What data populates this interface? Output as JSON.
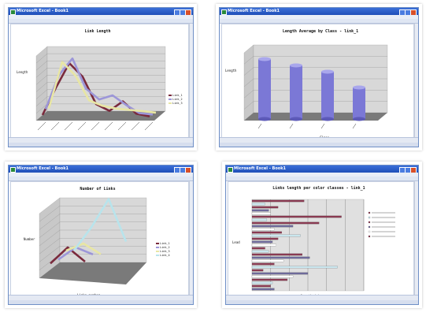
{
  "window": {
    "app_title": "Microsoft Excel - Book1",
    "control_icons": [
      "minimize-icon",
      "maximize-icon",
      "close-icon"
    ]
  },
  "colors": {
    "series_1": "#7a2a3c",
    "series_2": "#9c96d8",
    "series_3": "#e8e6a4",
    "series_4": "#b8e4ec",
    "cylinder": "#7b78d6",
    "wall": "#d8d8d8",
    "floor": "#7a7a7a",
    "titlebar": "#2a5ed0"
  },
  "panels": [
    {
      "title": "Microsoft Excel - Book1"
    },
    {
      "title": "Microsoft Excel - Book1"
    },
    {
      "title": "Microsoft Excel - Book1"
    },
    {
      "title": "Microsoft Excel - Book1"
    }
  ],
  "charts": {
    "link_length": {
      "title": "Link Length",
      "xlabel": "Class",
      "ylabel": "Length",
      "legend": [
        "Link_1",
        "Link_2",
        "Link_3"
      ]
    },
    "length_average": {
      "title": "Length Average by Class - link_1",
      "xlabel": "Class",
      "ylabel": "Length"
    },
    "number_of_links": {
      "title": "Number of Links",
      "xlabel": "Links number",
      "ylabel": "Number",
      "legend": [
        "Link_1",
        "Link_2",
        "Link_3",
        "Link_4"
      ]
    },
    "links_length_per_class": {
      "title": "Links length per color classes - link_1",
      "xlabel": "length (m)",
      "ylabel": "Lead"
    }
  },
  "chart_data": [
    {
      "type": "line",
      "title": "Link Length",
      "xlabel": "Class",
      "ylabel": "Length",
      "series": [
        {
          "name": "Link_1",
          "values": [
            2,
            22,
            40,
            30,
            10,
            5,
            12,
            3,
            1
          ]
        },
        {
          "name": "Link_2",
          "values": [
            5,
            30,
            42,
            20,
            12,
            15,
            8,
            2,
            1
          ]
        },
        {
          "name": "Link_3",
          "values": [
            4,
            38,
            28,
            10,
            6,
            4,
            3,
            2,
            1
          ]
        }
      ],
      "ylim": [
        0,
        45
      ]
    },
    {
      "type": "bar",
      "title": "Length Average by Class - link_1",
      "xlabel": "Class",
      "ylabel": "Length",
      "values": [
        1.9,
        1.7,
        1.5,
        1.0
      ]
    },
    {
      "type": "line",
      "title": "Number of Links",
      "xlabel": "Links number",
      "ylabel": "Number",
      "series": [
        {
          "name": "Link_1",
          "values": [
            3,
            12,
            4
          ]
        },
        {
          "name": "Link_2",
          "values": [
            2,
            9,
            5
          ]
        },
        {
          "name": "Link_3",
          "values": [
            4,
            8,
            2
          ]
        },
        {
          "name": "Link_4",
          "values": [
            1,
            14,
            30,
            6
          ]
        }
      ]
    },
    {
      "type": "bar",
      "title": "Links length per color classes - link_1",
      "xlabel": "length (m)",
      "ylabel": "Lead",
      "values": [
        28,
        7,
        14,
        9,
        10,
        48,
        8,
        36,
        22,
        12,
        16,
        26,
        14,
        11,
        13,
        7,
        9,
        27,
        31,
        17,
        12,
        46,
        6,
        30,
        22,
        19,
        11,
        10,
        12
      ],
      "ylim": [
        0,
        60
      ]
    }
  ]
}
